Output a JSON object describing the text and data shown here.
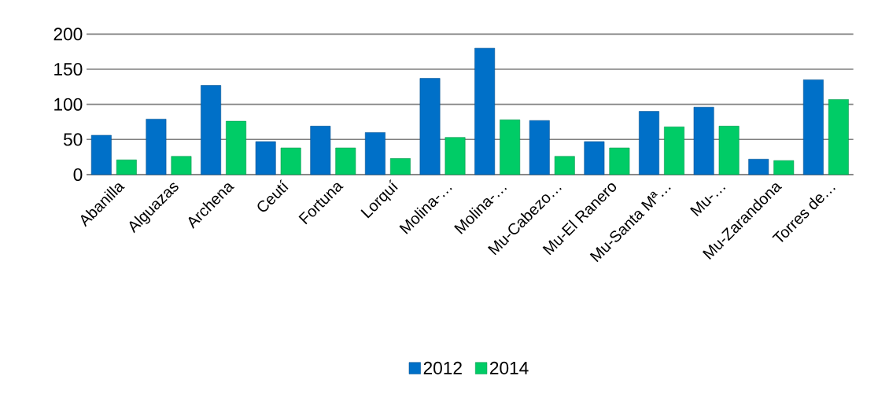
{
  "chart_data": {
    "type": "bar",
    "categories": [
      "Abanilla",
      "Alguazas",
      "Archena",
      "Ceutí",
      "Fortuna",
      "Lorquí",
      "Molina-…",
      "Molina-…",
      "Mu-Cabezo…",
      "Mu-El Ranero",
      "Mu-Santa Mª…",
      "Mu-…",
      "Mu-Zarandona",
      "Torres de…"
    ],
    "series": [
      {
        "name": "2012",
        "color": "#0070c8",
        "values": [
          56,
          79,
          127,
          47,
          69,
          60,
          137,
          180,
          77,
          47,
          90,
          96,
          22,
          135
        ]
      },
      {
        "name": "2014",
        "color": "#00cc66",
        "values": [
          21,
          26,
          76,
          38,
          38,
          23,
          53,
          78,
          26,
          38,
          68,
          69,
          20,
          107
        ]
      }
    ],
    "ylim": [
      0,
      200
    ],
    "yticks": [
      0,
      50,
      100,
      150,
      200
    ],
    "grid": "y",
    "legend": "bottom"
  }
}
